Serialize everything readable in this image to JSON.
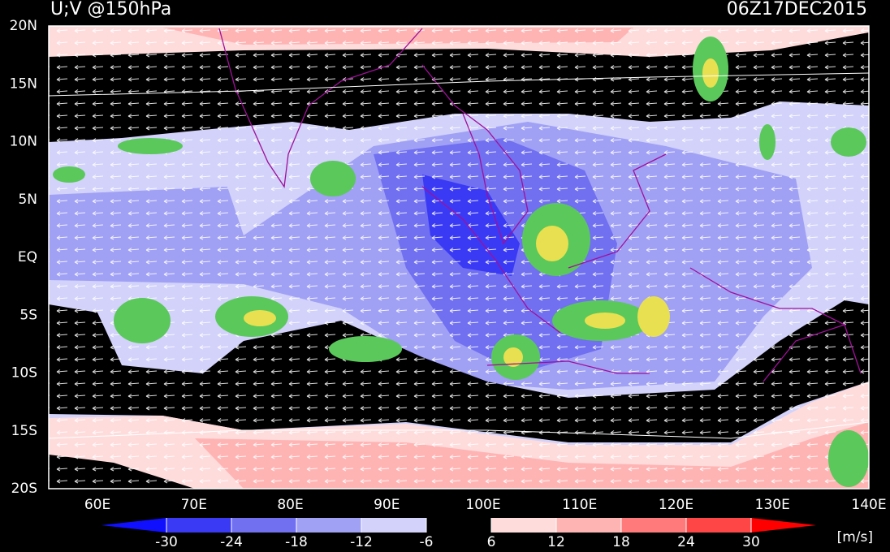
{
  "header": {
    "title": "U;V @150hPa",
    "time": "06Z17DEC2015"
  },
  "map": {
    "lat_labels": [
      "20N",
      "15N",
      "10N",
      "5N",
      "EQ",
      "5S",
      "10S",
      "15S",
      "20S"
    ],
    "lon_labels": [
      "60E",
      "70E",
      "80E",
      "90E",
      "100E",
      "110E",
      "120E",
      "130E",
      "140E"
    ]
  },
  "colorbar": {
    "ticks": [
      -30,
      -24,
      -18,
      -12,
      -6,
      6,
      12,
      18,
      24,
      30
    ],
    "colors": [
      "#1010ff",
      "#3a3af5",
      "#7070f0",
      "#a0a0f5",
      "#d2d2fa",
      "#000000",
      "#ffdcdc",
      "#ffb4b4",
      "#ff7a7a",
      "#ff4646",
      "#ff0000"
    ],
    "units": "[m/s]"
  }
}
